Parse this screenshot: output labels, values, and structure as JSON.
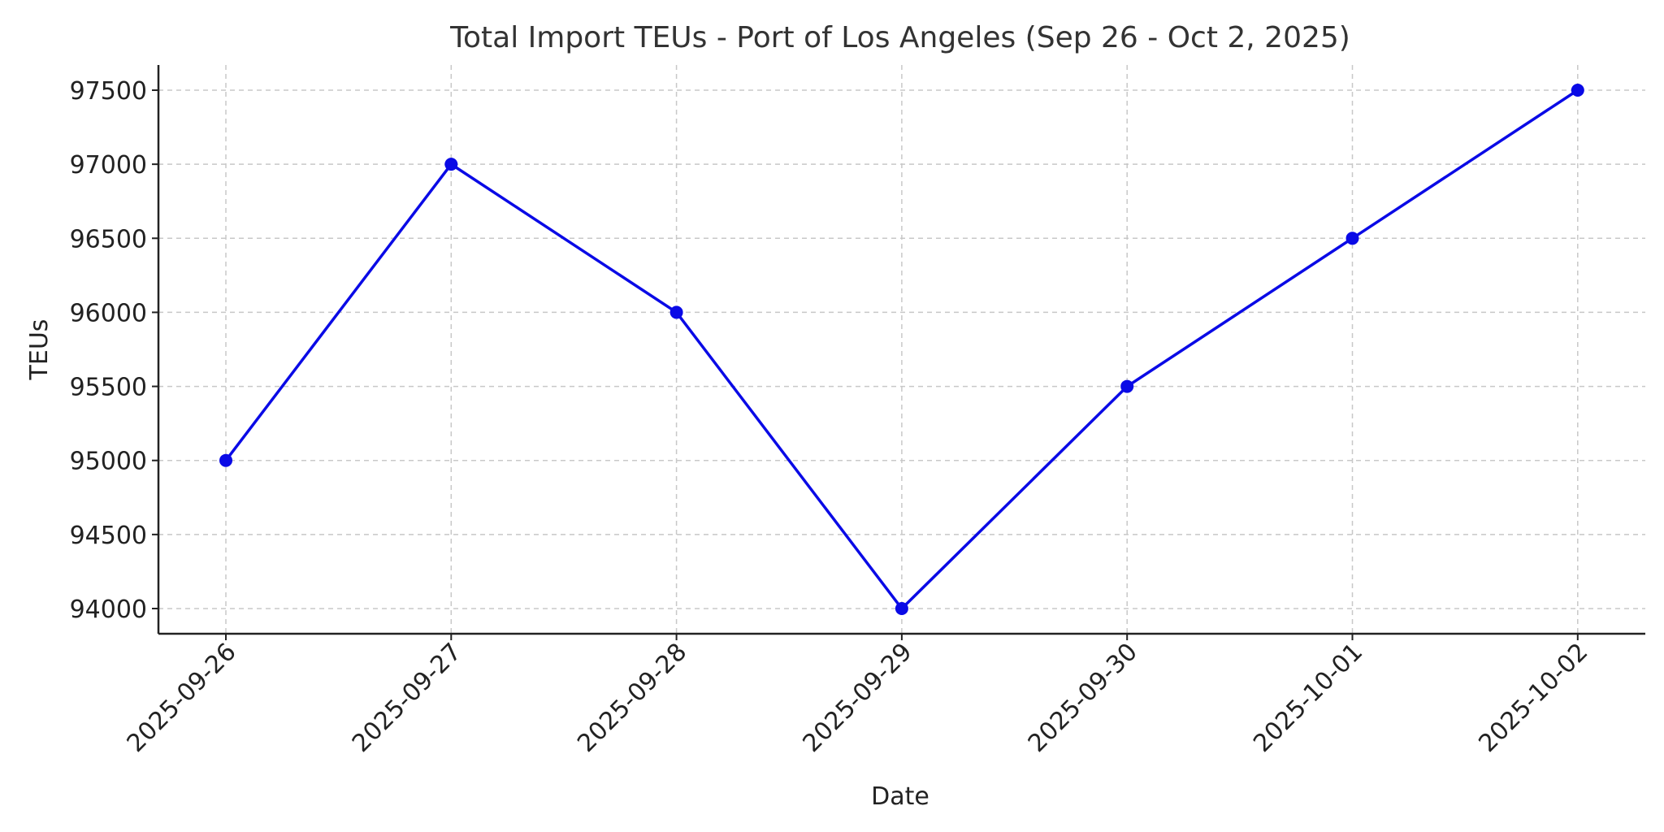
{
  "chart_data": {
    "type": "line",
    "title": "Total Import TEUs - Port of Los Angeles (Sep 26 - Oct 2, 2025)",
    "xlabel": "Date",
    "ylabel": "TEUs",
    "categories": [
      "2025-09-26",
      "2025-09-27",
      "2025-09-28",
      "2025-09-29",
      "2025-09-30",
      "2025-10-01",
      "2025-10-02"
    ],
    "series": [
      {
        "values": [
          95000,
          97000,
          96000,
          94000,
          95500,
          96500,
          97500
        ],
        "color": "#0a0ae6",
        "marker": "circle"
      }
    ],
    "ylim": [
      93830,
      97670
    ],
    "yticks": [
      94000,
      94500,
      95000,
      95500,
      96000,
      96500,
      97000,
      97500
    ],
    "grid": true,
    "legend": "none"
  }
}
